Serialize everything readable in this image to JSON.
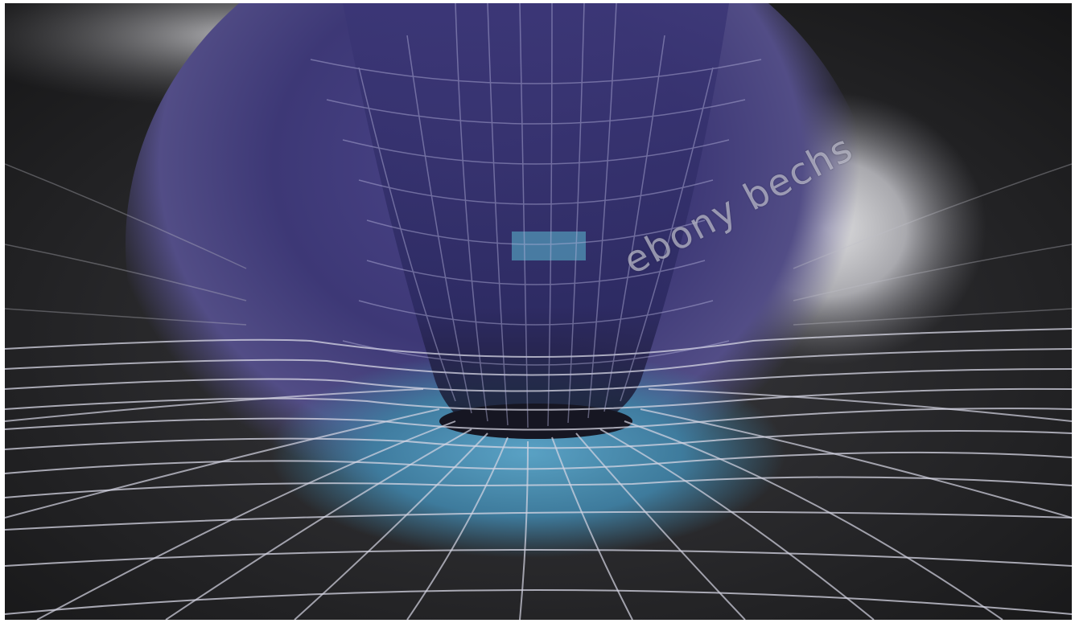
{
  "image": {
    "description_colors": {
      "background": "#232324",
      "funnel_purple": "#3f3a78",
      "funnel_teal": "#4f8fb0",
      "grid_line": "#d8d8e6",
      "glow": "#c9c9cc"
    }
  },
  "watermark": {
    "text": "ebony bechs"
  }
}
